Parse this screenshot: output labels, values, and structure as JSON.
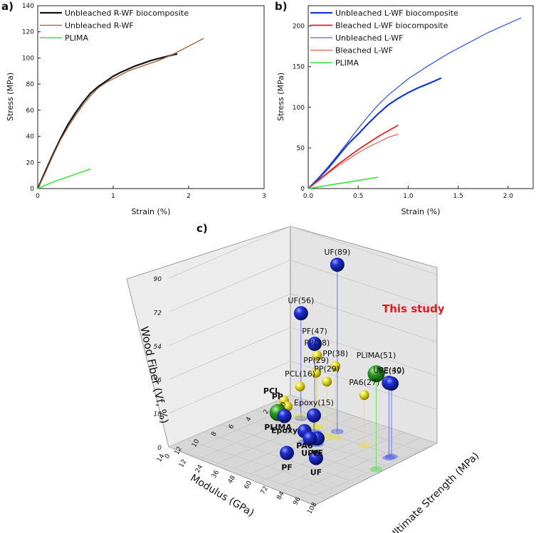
{
  "chart_data": [
    {
      "id": "a",
      "type": "line",
      "panel_label": "a)",
      "xlabel": "Strain (%)",
      "ylabel": "Stress (MPa)",
      "xlim": [
        0,
        3
      ],
      "ylim": [
        0,
        140
      ],
      "xticks": [
        "0",
        "1",
        "2",
        "3"
      ],
      "yticks": [
        "0",
        "20",
        "40",
        "60",
        "80",
        "100",
        "120",
        "140"
      ],
      "legend_position": "top-left",
      "series": [
        {
          "name": "Unbleached R-WF biocomposite",
          "color": "#111111",
          "width": 2.2,
          "points": [
            [
              0,
              0
            ],
            [
              0.1,
              13
            ],
            [
              0.2,
              26
            ],
            [
              0.3,
              38
            ],
            [
              0.4,
              49
            ],
            [
              0.5,
              58
            ],
            [
              0.6,
              66
            ],
            [
              0.7,
              73
            ],
            [
              0.8,
              78
            ],
            [
              0.9,
              82
            ],
            [
              1.0,
              86
            ],
            [
              1.1,
              89
            ],
            [
              1.2,
              91.5
            ],
            [
              1.3,
              94
            ],
            [
              1.4,
              96
            ],
            [
              1.5,
              98
            ],
            [
              1.6,
              99.5
            ],
            [
              1.7,
              101
            ],
            [
              1.8,
              102.5
            ],
            [
              1.85,
              103
            ]
          ]
        },
        {
          "name": "Unbleached R-WF",
          "color": "#9a5b33",
          "width": 1.3,
          "points": [
            [
              0,
              0
            ],
            [
              0.1,
              12
            ],
            [
              0.2,
              25
            ],
            [
              0.3,
              37
            ],
            [
              0.4,
              47
            ],
            [
              0.5,
              56
            ],
            [
              0.6,
              64
            ],
            [
              0.7,
              71
            ],
            [
              0.8,
              77
            ],
            [
              0.9,
              81
            ],
            [
              1.0,
              84
            ],
            [
              1.1,
              87
            ],
            [
              1.2,
              90
            ],
            [
              1.4,
              94
            ],
            [
              1.6,
              98
            ],
            [
              1.8,
              103
            ],
            [
              2.0,
              109
            ],
            [
              2.2,
              115
            ]
          ]
        },
        {
          "name": "PLIMA",
          "color": "#3ee03e",
          "width": 1.6,
          "points": [
            [
              0,
              0
            ],
            [
              0.1,
              2.5
            ],
            [
              0.2,
              5
            ],
            [
              0.3,
              7
            ],
            [
              0.4,
              9
            ],
            [
              0.5,
              11
            ],
            [
              0.6,
              13
            ],
            [
              0.7,
              15
            ]
          ]
        }
      ]
    },
    {
      "id": "b",
      "type": "line",
      "panel_label": "b)",
      "xlabel": "Strain (%)",
      "ylabel": "Stress (MPa)",
      "xlim": [
        0,
        2.25
      ],
      "ylim": [
        0,
        225
      ],
      "xticks": [
        "0.0",
        "0.5",
        "1.0",
        "1.5",
        "2.0"
      ],
      "yticks": [
        "0",
        "50",
        "100",
        "150",
        "200"
      ],
      "legend_position": "top-left",
      "series": [
        {
          "name": "Unbleached L-WF biocomposite",
          "color": "#1536d9",
          "width": 2.2,
          "points": [
            [
              0,
              0
            ],
            [
              0.1,
              12
            ],
            [
              0.2,
              25
            ],
            [
              0.3,
              40
            ],
            [
              0.4,
              55
            ],
            [
              0.5,
              67
            ],
            [
              0.6,
              80
            ],
            [
              0.7,
              92
            ],
            [
              0.8,
              103
            ],
            [
              0.9,
              111
            ],
            [
              1.0,
              118
            ],
            [
              1.1,
              124
            ],
            [
              1.2,
              129
            ],
            [
              1.33,
              136
            ]
          ]
        },
        {
          "name": "Bleached L-WF biocomposite",
          "color": "#e02020",
          "width": 1.8,
          "points": [
            [
              0,
              0
            ],
            [
              0.1,
              10
            ],
            [
              0.2,
              20
            ],
            [
              0.3,
              30
            ],
            [
              0.4,
              39
            ],
            [
              0.5,
              48
            ],
            [
              0.6,
              56
            ],
            [
              0.7,
              64
            ],
            [
              0.8,
              71
            ],
            [
              0.9,
              78
            ]
          ]
        },
        {
          "name": "Unbleached L-WF",
          "color": "#2040e0",
          "width": 1.1,
          "points": [
            [
              0,
              0
            ],
            [
              0.1,
              13
            ],
            [
              0.2,
              27
            ],
            [
              0.3,
              42
            ],
            [
              0.4,
              58
            ],
            [
              0.5,
              74
            ],
            [
              0.6,
              89
            ],
            [
              0.7,
              103
            ],
            [
              0.8,
              115
            ],
            [
              1.0,
              135
            ],
            [
              1.2,
              151
            ],
            [
              1.4,
              166
            ],
            [
              1.6,
              179
            ],
            [
              1.8,
              192
            ],
            [
              2.0,
              203
            ],
            [
              2.13,
              210
            ]
          ]
        },
        {
          "name": "Bleached L-WF",
          "color": "#e84040",
          "width": 1.0,
          "points": [
            [
              0,
              0
            ],
            [
              0.1,
              9
            ],
            [
              0.2,
              19
            ],
            [
              0.3,
              28
            ],
            [
              0.4,
              36
            ],
            [
              0.5,
              44
            ],
            [
              0.6,
              51
            ],
            [
              0.7,
              57
            ],
            [
              0.8,
              63
            ],
            [
              0.9,
              67
            ]
          ]
        },
        {
          "name": "PLIMA",
          "color": "#3ee03e",
          "width": 1.6,
          "points": [
            [
              0,
              0
            ],
            [
              0.1,
              2
            ],
            [
              0.2,
              4
            ],
            [
              0.3,
              6
            ],
            [
              0.4,
              8
            ],
            [
              0.5,
              10
            ],
            [
              0.6,
              12
            ],
            [
              0.7,
              14
            ]
          ]
        }
      ]
    },
    {
      "id": "c",
      "type": "scatter",
      "projection": "3d",
      "panel_label": "c)",
      "xlabel": "Modulus (GPa)",
      "ylabel": "Ultimate Strength (MPa)",
      "zlabel": "Wood Fiber (Vf, %)",
      "xlim": [
        0,
        14
      ],
      "ylim": [
        0,
        108
      ],
      "zlim": [
        0,
        90
      ],
      "xticks": [
        "0",
        "2",
        "4",
        "6",
        "8",
        "10",
        "12",
        "14"
      ],
      "yticks": [
        "0",
        "12",
        "24",
        "36",
        "48",
        "60",
        "72",
        "84",
        "96",
        "108"
      ],
      "zticks": [
        "0",
        "18",
        "36",
        "54",
        "72",
        "90"
      ],
      "annotation": "This study",
      "points": [
        {
          "label": "UF(89)",
          "x": 3.2,
          "y": 55,
          "z": 89,
          "color": "blue",
          "bold": false
        },
        {
          "label": "UF(56)",
          "x": 3.0,
          "y": 27,
          "z": 56,
          "color": "blue",
          "bold": false
        },
        {
          "label": "PF(47)",
          "x": 4.4,
          "y": 46,
          "z": 47,
          "color": "blue",
          "bold": false
        },
        {
          "label": "PP(38)",
          "x": 4.2,
          "y": 60,
          "z": 38,
          "color": "yellow",
          "bold": false
        },
        {
          "label": "PP(38)",
          "x": 3.5,
          "y": 42,
          "z": 38,
          "color": "yellow",
          "bold": false
        },
        {
          "label": "PP(29)",
          "x": 3.6,
          "y": 42,
          "z": 29,
          "color": "yellow",
          "bold": false
        },
        {
          "label": "PP(29)",
          "x": 4.4,
          "y": 55,
          "z": 29,
          "color": "yellow",
          "bold": false
        },
        {
          "label": "PA6(27)",
          "x": 4.0,
          "y": 80,
          "z": 27,
          "color": "yellow",
          "bold": false
        },
        {
          "label": "PCL(16)",
          "x": 2.8,
          "y": 25,
          "z": 16,
          "color": "yellow",
          "bold": false
        },
        {
          "label": "Epoxy(15)",
          "x": 6.2,
          "y": 57,
          "z": 15,
          "color": "blue",
          "bold": false
        },
        {
          "label": "VE(39)",
          "x": 4.3,
          "y": 102,
          "z": 39,
          "color": "blue",
          "bold": false
        },
        {
          "label": "UPE(40)",
          "x": 4.6,
          "y": 102,
          "z": 40,
          "color": "blue",
          "bold": false
        },
        {
          "label": "PLIMA(51)",
          "x": 7.0,
          "y": 108,
          "z": 51,
          "color": "green",
          "bold": false
        },
        {
          "label": "PA6",
          "x": 6.5,
          "y": 52,
          "z": 6,
          "color": "blue",
          "bold": true
        },
        {
          "label": "UPE",
          "x": 6.5,
          "y": 56,
          "z": 3,
          "color": "blue",
          "bold": true
        },
        {
          "label": "VE",
          "x": 6.1,
          "y": 59,
          "z": 3,
          "color": "blue",
          "bold": true
        },
        {
          "label": "PCL",
          "x": 1.2,
          "y": 3,
          "z": 0,
          "color": "yellow",
          "bold": true
        },
        {
          "label": "PP",
          "x": 1.9,
          "y": 10,
          "z": 0,
          "color": "yellow",
          "bold": true
        },
        {
          "label": "Epoxy",
          "x": 3.5,
          "y": 18,
          "z": 0,
          "color": "blue",
          "bold": true
        },
        {
          "label": "PLIMA",
          "x": 3.3,
          "y": 12,
          "z": 0,
          "color": "green",
          "bold": true
        },
        {
          "label": "PF",
          "x": 9.0,
          "y": 55,
          "z": 0,
          "color": "blue",
          "bold": true
        },
        {
          "label": "UF",
          "x": 8.3,
          "y": 72,
          "z": 0,
          "color": "blue",
          "bold": true
        }
      ]
    }
  ]
}
